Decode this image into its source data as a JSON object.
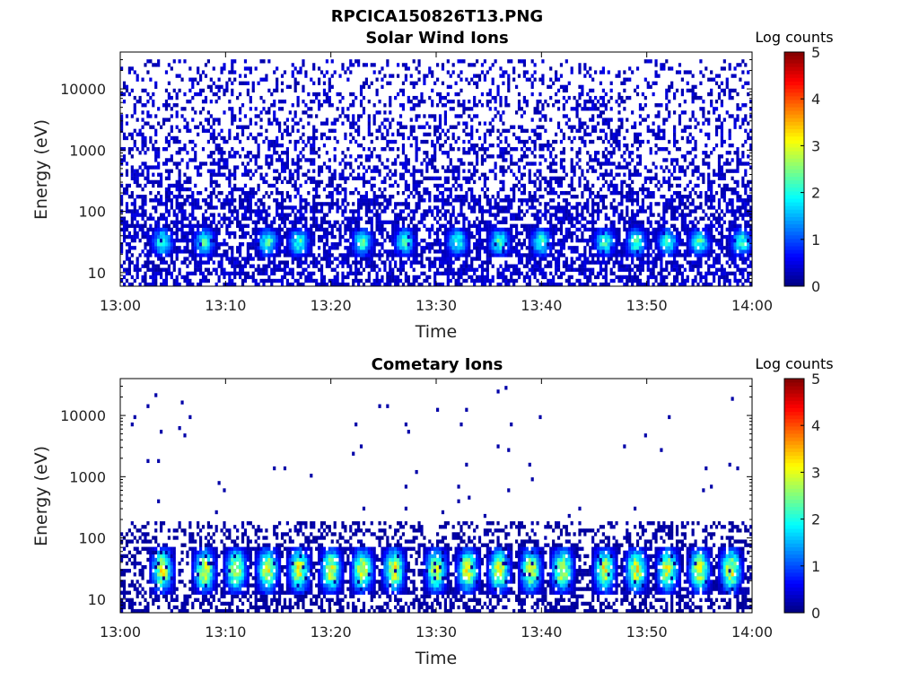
{
  "figure_title": "RPCICA150826T13.PNG",
  "chart_data": [
    {
      "type": "heatmap",
      "title": "Solar Wind Ions",
      "xlabel": "Time",
      "ylabel": "Energy (eV)",
      "x_ticks": [
        "13:00",
        "13:10",
        "13:20",
        "13:30",
        "13:40",
        "13:50",
        "14:00"
      ],
      "x_range": [
        "13:00",
        "14:00"
      ],
      "y_scale": "log",
      "y_ticks": [
        10,
        100,
        1000,
        10000
      ],
      "y_tick_labels": [
        "10",
        "100",
        "1000",
        "10000"
      ],
      "y_range": [
        6,
        40000
      ],
      "colorbar": {
        "label": "Log counts",
        "range": [
          0,
          5
        ],
        "ticks": [
          "0",
          "1",
          "2",
          "3",
          "4",
          "5"
        ],
        "colormap": "jet"
      },
      "features": {
        "band_energy_eV": [
          20,
          50
        ],
        "band_peak_log_counts": 2.6,
        "band_peak_times": [
          "13:04",
          "13:08",
          "13:14",
          "13:17",
          "13:23",
          "13:27",
          "13:32",
          "13:36",
          "13:40",
          "13:46",
          "13:49",
          "13:52",
          "13:55",
          "13:59"
        ],
        "background_log_counts": 0.4,
        "background_energy_range_eV": [
          6,
          30000
        ]
      }
    },
    {
      "type": "heatmap",
      "title": "Cometary Ions",
      "xlabel": "Time",
      "ylabel": "Energy (eV)",
      "x_ticks": [
        "13:00",
        "13:10",
        "13:20",
        "13:30",
        "13:40",
        "13:50",
        "14:00"
      ],
      "x_range": [
        "13:00",
        "14:00"
      ],
      "y_scale": "log",
      "y_ticks": [
        10,
        100,
        1000,
        10000
      ],
      "y_tick_labels": [
        "10",
        "100",
        "1000",
        "10000"
      ],
      "y_range": [
        6,
        40000
      ],
      "colorbar": {
        "label": "Log counts",
        "range": [
          0,
          5
        ],
        "ticks": [
          "0",
          "1",
          "2",
          "3",
          "4",
          "5"
        ],
        "colormap": "jet"
      },
      "features": {
        "band_energy_eV": [
          15,
          60
        ],
        "band_peak_log_counts": 3.6,
        "band_peak_times": [
          "13:04",
          "13:08",
          "13:11",
          "13:14",
          "13:17",
          "13:20",
          "13:23",
          "13:26",
          "13:30",
          "13:33",
          "13:36",
          "13:39",
          "13:42",
          "13:46",
          "13:49",
          "13:52",
          "13:55",
          "13:58"
        ],
        "background_log_counts": 0.2,
        "background_energy_range_eV": [
          6,
          200
        ],
        "sparse_counts_energy_range_eV": [
          200,
          30000
        ]
      }
    }
  ]
}
